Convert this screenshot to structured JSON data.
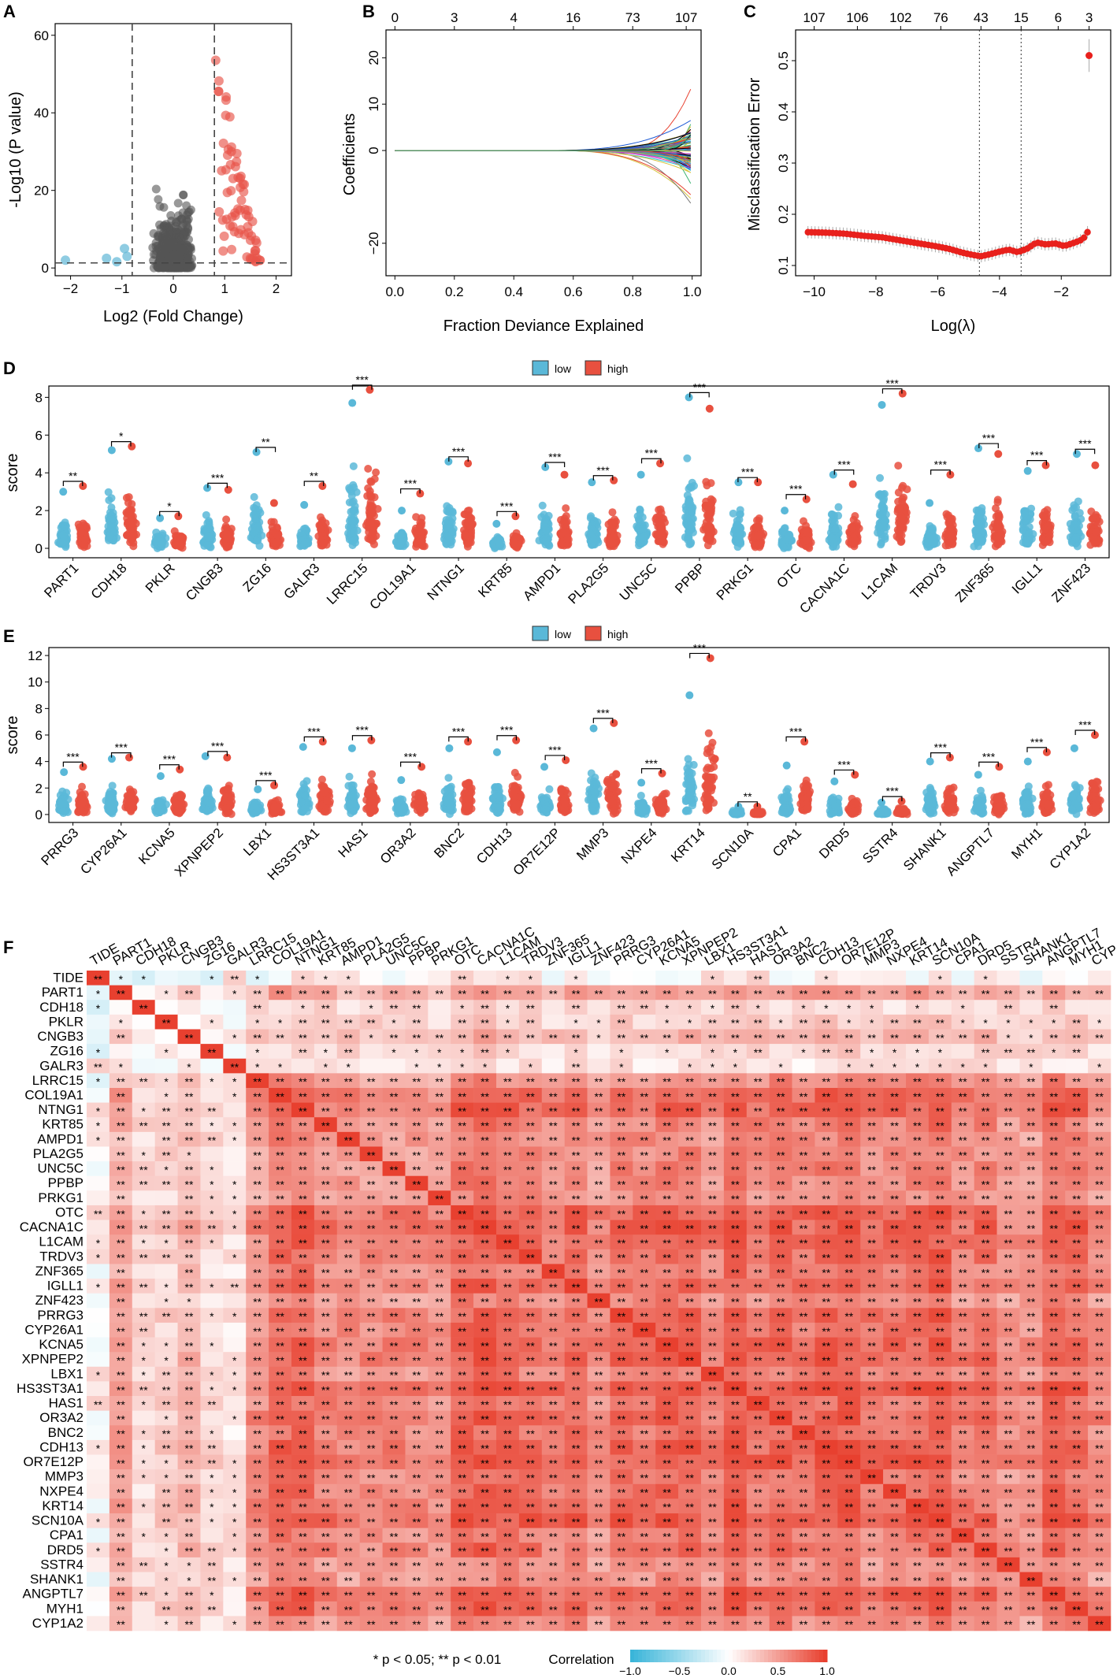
{
  "panels": {
    "A": {
      "label": "A",
      "type": "scatter",
      "xlabel": "Log2 (Fold Change)",
      "ylabel": "-Log10 (P value)",
      "xlim": [
        -2.3,
        2.3
      ],
      "ylim": [
        -2,
        63
      ],
      "xticks": [
        -2,
        -1,
        0,
        1,
        2
      ],
      "yticks": [
        0,
        20,
        40,
        60
      ],
      "fc_cutoff": [
        -0.8,
        0.8
      ],
      "p_cutoff": 1.3,
      "colors": {
        "down": "#5fb7d6",
        "ns": "#555555",
        "up": "#e8554a"
      }
    },
    "B": {
      "label": "B",
      "type": "line",
      "xlabel": "Fraction Deviance Explained",
      "ylabel": "Coefficients",
      "xlim": [
        -0.03,
        1.03
      ],
      "ylim": [
        -27,
        26
      ],
      "xticks": [
        "0.0",
        "0.2",
        "0.4",
        "0.6",
        "0.8",
        "1.0"
      ],
      "yticks": [
        "-20",
        "0",
        "10",
        "20"
      ],
      "top_ticks": [
        "0",
        "3",
        "4",
        "16",
        "73",
        "107"
      ],
      "top_tick_pos": [
        0.0,
        0.2,
        0.4,
        0.6,
        0.8,
        0.98
      ]
    },
    "C": {
      "label": "C",
      "type": "line",
      "xlabel": "Log(λ)",
      "ylabel": "Misclassification Error",
      "xlim": [
        -10.6,
        -0.4
      ],
      "ylim": [
        0.08,
        0.56
      ],
      "xticks": [
        "-10",
        "-8",
        "-6",
        "-4",
        "-2"
      ],
      "yticks": [
        "0.1",
        "0.2",
        "0.3",
        "0.4",
        "0.5"
      ],
      "top_ticks": [
        "107",
        "106",
        "102",
        "76",
        "43",
        "15",
        "6",
        "3"
      ],
      "top_tick_pos": [
        -10.0,
        -8.6,
        -7.2,
        -5.9,
        -4.6,
        -3.3,
        -2.1,
        -1.1
      ],
      "lambda_min": -4.65,
      "lambda_1se": -3.3,
      "error_curve_x": [
        -10.2,
        -9.6,
        -9.0,
        -8.4,
        -7.8,
        -7.2,
        -6.6,
        -6.0,
        -5.6,
        -5.2,
        -4.9,
        -4.6,
        -4.3,
        -4.0,
        -3.7,
        -3.4,
        -3.1,
        -2.8,
        -2.5,
        -2.2,
        -1.9,
        -1.6,
        -1.3,
        -1.15
      ],
      "error_curve_y": [
        0.165,
        0.164,
        0.162,
        0.158,
        0.155,
        0.149,
        0.143,
        0.137,
        0.132,
        0.125,
        0.121,
        0.118,
        0.122,
        0.127,
        0.131,
        0.126,
        0.133,
        0.145,
        0.141,
        0.143,
        0.138,
        0.144,
        0.151,
        0.165
      ],
      "outlier": {
        "x": -1.1,
        "y": 0.51
      }
    },
    "D": {
      "label": "D",
      "type": "strip",
      "ylabel": "score",
      "ylim": [
        -0.5,
        8.6
      ],
      "yticks": [
        0,
        2,
        4,
        6,
        8
      ],
      "legend": [
        "low",
        "high"
      ],
      "genes": [
        "PART1",
        "CDH18",
        "PKLR",
        "CNGB3",
        "ZG16",
        "GALR3",
        "LRRC15",
        "COL19A1",
        "NTNG1",
        "KRT85",
        "AMPD1",
        "PLA2G5",
        "UNC5C",
        "PPBP",
        "PRKG1",
        "OTC",
        "CACNA1C",
        "L1CAM",
        "TRDV3",
        "ZNF365",
        "IGLL1",
        "ZNF423"
      ],
      "sig": [
        "**",
        "*",
        "*",
        "***",
        "**",
        "**",
        "***",
        "***",
        "***",
        "***",
        "***",
        "***",
        "***",
        "***",
        "***",
        "***",
        "***",
        "***",
        "***",
        "***",
        "***",
        "***"
      ],
      "low_max": [
        3.0,
        5.2,
        1.6,
        3.2,
        5.1,
        2.3,
        7.7,
        2.0,
        4.6,
        1.3,
        4.3,
        3.5,
        3.9,
        8.0,
        3.5,
        2.0,
        3.9,
        7.6,
        2.4,
        5.3,
        4.1,
        5.0
      ],
      "high_max": [
        3.3,
        5.4,
        1.7,
        3.1,
        2.4,
        3.3,
        8.4,
        2.9,
        4.5,
        1.7,
        3.9,
        3.6,
        4.5,
        7.4,
        3.5,
        2.6,
        3.4,
        8.2,
        3.9,
        5.0,
        4.4,
        4.4
      ]
    },
    "E": {
      "label": "E",
      "type": "strip",
      "ylabel": "score",
      "ylim": [
        -0.6,
        12.6
      ],
      "yticks": [
        0,
        2,
        4,
        6,
        8,
        10,
        12
      ],
      "legend": [
        "low",
        "high"
      ],
      "genes": [
        "PRRG3",
        "CYP26A1",
        "KCNA5",
        "XPNPEP2",
        "LBX1",
        "HS3ST3A1",
        "HAS1",
        "OR3A2",
        "BNC2",
        "CDH13",
        "OR7E12P",
        "MMP3",
        "NXPE4",
        "KRT14",
        "SCN10A",
        "CPA1",
        "DRD5",
        "SSTR4",
        "SHANK1",
        "ANGPTL7",
        "MYH1",
        "CYP1A2"
      ],
      "sig": [
        "***",
        "***",
        "***",
        "***",
        "***",
        "***",
        "***",
        "***",
        "***",
        "***",
        "***",
        "***",
        "***",
        "***",
        "**",
        "***",
        "***",
        "***",
        "***",
        "***",
        "***",
        "***"
      ],
      "low_max": [
        3.2,
        4.2,
        2.9,
        4.4,
        1.9,
        5.1,
        5.0,
        2.6,
        5.0,
        4.7,
        3.6,
        6.5,
        2.4,
        9.0,
        0.6,
        3.7,
        2.5,
        0.9,
        4.0,
        3.0,
        4.0,
        5.0
      ],
      "high_max": [
        3.6,
        4.3,
        3.4,
        4.3,
        2.2,
        5.5,
        5.6,
        3.6,
        5.5,
        5.6,
        4.1,
        6.9,
        3.1,
        11.8,
        0.6,
        5.5,
        3.0,
        1.0,
        4.3,
        3.6,
        4.7,
        6.0
      ]
    },
    "F": {
      "label": "F",
      "type": "heatmap",
      "rows": [
        "TIDE",
        "PART1",
        "CDH18",
        "PKLR",
        "CNGB3",
        "ZG16",
        "GALR3",
        "LRRC15",
        "COL19A1",
        "NTNG1",
        "KRT85",
        "AMPD1",
        "PLA2G5",
        "UNC5C",
        "PPBP",
        "PRKG1",
        "OTC",
        "CACNA1C",
        "L1CAM",
        "TRDV3",
        "ZNF365",
        "IGLL1",
        "ZNF423",
        "PRRG3",
        "CYP26A1",
        "KCNA5",
        "XPNPEP2",
        "LBX1",
        "HS3ST3A1",
        "HAS1",
        "OR3A2",
        "BNC2",
        "CDH13",
        "OR7E12P",
        "MMP3",
        "NXPE4",
        "KRT14",
        "SCN10A",
        "CPA1",
        "DRD5",
        "SSTR4",
        "SHANK1",
        "ANGPTL7",
        "MYH1",
        "CYP1A2"
      ],
      "columns": [
        "TIDE",
        "PART1",
        "CDH18",
        "PKLR",
        "CNGB3",
        "ZG16",
        "GALR3",
        "LRRC15",
        "COL19A1",
        "NTNG1",
        "KRT85",
        "AMPD1",
        "PLA2G5",
        "UNC5C",
        "PPBP",
        "PRKG1",
        "OTC",
        "CACNA1C",
        "L1CAM",
        "TRDV3",
        "ZNF365",
        "IGLL1",
        "ZNF423",
        "PRRG3",
        "CYP26A1",
        "KCNA5",
        "XPNPEP2",
        "LBX1",
        "HS3ST3A1",
        "HAS1",
        "OR3A2",
        "BNC2",
        "CDH13",
        "OR7E12P",
        "MMP3",
        "NXPE4",
        "KRT14",
        "SCN10A",
        "CPA1",
        "DRD5",
        "SSTR4",
        "SHANK1",
        "ANGPTL7",
        "MYH1",
        "CYP"
      ],
      "footnote": "* p < 0.05; ** p < 0.01",
      "colorbar_title": "Correlation",
      "colorbar_ticks": [
        "-1.0",
        "-0.5",
        "0.0",
        "0.5",
        "1.0"
      ],
      "colorbar_values": [
        -1.0,
        -0.5,
        0.0,
        0.5,
        1.0
      ],
      "colors": {
        "neg": "#3ab5d9",
        "mid": "#ffffff",
        "pos": "#e8402f"
      }
    }
  }
}
